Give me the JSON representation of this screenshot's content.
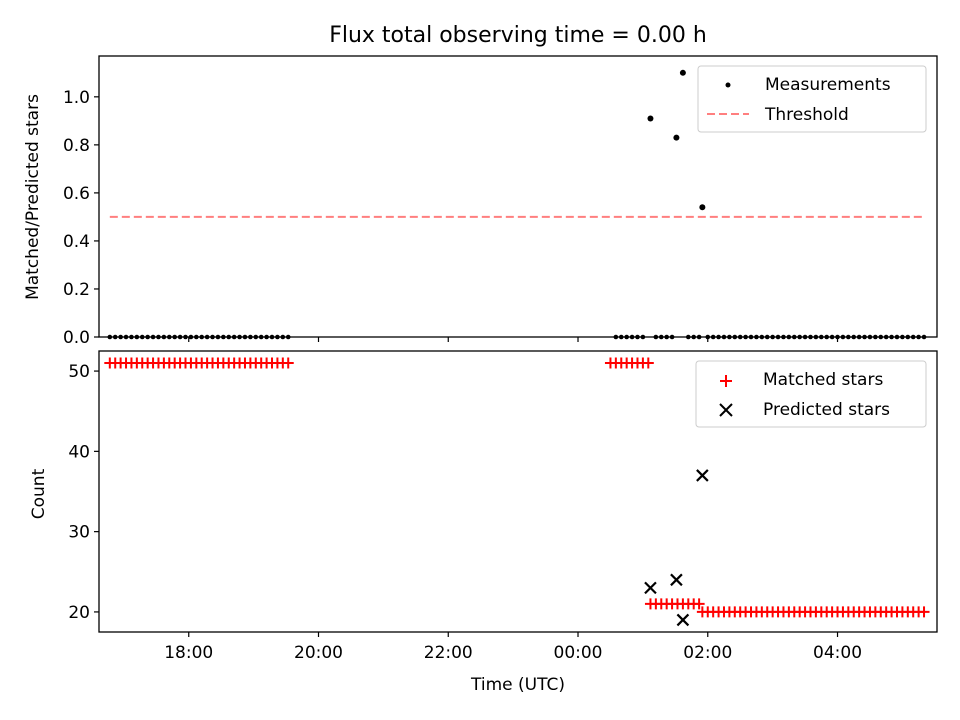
{
  "chart_data": [
    {
      "type": "scatter",
      "title": "Flux total observing time = 0.00 h",
      "ylabel": "Matched/Predicted stars",
      "xlim": [
        "16:37",
        "05:32"
      ],
      "ylim": [
        0,
        1.17
      ],
      "yticks": [
        0.0,
        0.2,
        0.4,
        0.6,
        0.8,
        1.0
      ],
      "ytick_labels": [
        "0.0",
        "0.2",
        "0.4",
        "0.6",
        "0.8",
        "1.0"
      ],
      "legend_position": "top-right",
      "legend": [
        "Measurements",
        "Threshold"
      ],
      "series": [
        {
          "name": "Measurements",
          "kind": "scatter",
          "color": "#000000",
          "points": [
            {
              "x": "01:07",
              "y": 0.91
            },
            {
              "x": "01:31",
              "y": 0.83
            },
            {
              "x": "01:37",
              "y": 1.1
            },
            {
              "x": "01:55",
              "y": 0.54
            }
          ],
          "zero_segments": [
            {
              "start": "16:47",
              "end": "19:32",
              "step_min": 5
            },
            {
              "start": "00:35",
              "end": "01:02",
              "step_min": 5
            },
            {
              "start": "01:12",
              "end": "01:27",
              "step_min": 5
            },
            {
              "start": "01:42",
              "end": "01:52",
              "step_min": 5
            },
            {
              "start": "02:00",
              "end": "05:20",
              "step_min": 5
            }
          ]
        },
        {
          "name": "Threshold",
          "kind": "line",
          "style": "dashed",
          "color": "#ff7f7f",
          "x": [
            "16:47",
            "05:20"
          ],
          "y": [
            0.5,
            0.5
          ]
        }
      ]
    },
    {
      "type": "scatter",
      "xlabel": "Time (UTC)",
      "ylabel": "Count",
      "ylim": [
        17.5,
        52.5
      ],
      "yticks": [
        20,
        30,
        40,
        50
      ],
      "ytick_labels": [
        "20",
        "30",
        "40",
        "50"
      ],
      "xtick_labels": [
        "18:00",
        "20:00",
        "22:00",
        "00:00",
        "02:00",
        "04:00"
      ],
      "legend_position": "top-right",
      "legend": [
        "Matched stars",
        "Predicted stars"
      ],
      "series": [
        {
          "name": "Matched stars",
          "marker": "+",
          "color": "#ff0000",
          "segments": [
            {
              "start": "16:47",
              "end": "19:32",
              "step_min": 5,
              "y": 51
            },
            {
              "start": "00:30",
              "end": "01:05",
              "step_min": 5,
              "y": 51
            },
            {
              "start": "01:07",
              "end": "01:27",
              "step_min": 5,
              "y": 21
            },
            {
              "start": "01:32",
              "end": "01:52",
              "step_min": 5,
              "y": 21
            },
            {
              "start": "01:55",
              "end": "05:20",
              "step_min": 5,
              "y": 20
            }
          ]
        },
        {
          "name": "Predicted stars",
          "marker": "x",
          "color": "#000000",
          "points": [
            {
              "x": "01:07",
              "y": 23
            },
            {
              "x": "01:31",
              "y": 24
            },
            {
              "x": "01:37",
              "y": 19
            },
            {
              "x": "01:55",
              "y": 37
            }
          ]
        }
      ]
    }
  ]
}
